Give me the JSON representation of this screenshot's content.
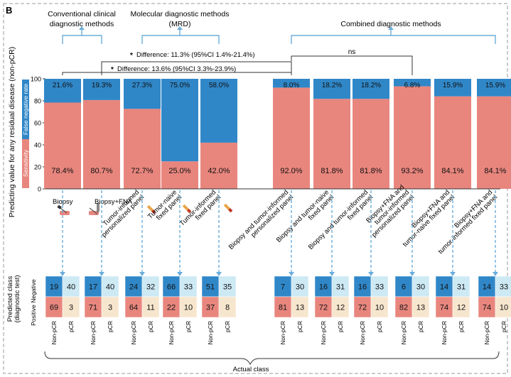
{
  "panel_label": "B",
  "groups": {
    "conventional": "Conventional clinical diagnostic methods",
    "conventional_lines": [
      "Conventional clinical",
      "diagnostic methods"
    ],
    "molecular_lines": [
      "Molecular diagnostic methods",
      "(MRD)"
    ],
    "combined": "Combined diagnostic methods"
  },
  "comparisons": [
    {
      "marker": "*",
      "text": "Difference: 11.3% (95%CI 1.4%-21.4%)"
    },
    {
      "marker": "*",
      "text": "Difference: 13.6% (95%CI 3.3%-23.9%)"
    },
    {
      "marker": "",
      "text": "ns"
    }
  ],
  "legend": {
    "false_negative": "False negative rate",
    "sensitivity": "Sensitivity"
  },
  "colors": {
    "sensitivity": "#E8867E",
    "false_negative": "#3087C8",
    "arrow": "#6BAEDB",
    "tn_cell": "#CDE9F4",
    "tp_cell": "#F7E6CE"
  },
  "icons": [
    {
      "name": "biopsy-needle-icon",
      "semantic": "biopsy-needle-icon"
    },
    {
      "name": "biopsy-fna-icon",
      "semantic": "biopsy-fna-icon"
    },
    {
      "name": "blood-tube-icon",
      "semantic": "blood-tube-icon"
    }
  ],
  "chart_data": {
    "type": "bar",
    "stacked": true,
    "ylabel": "Predicting value for any residual disease (non-pCR)",
    "ylim": [
      0,
      100
    ],
    "categories": [
      "Biopsy",
      "Biopsy+FNA",
      "Tumor-informed personalized panel",
      "Tumor-naive fixed panel",
      "Tumor-informed fixed panel",
      "Biopsy and tumor-informed personalized panel",
      "Biopsy and tumor-naive fixed panel",
      "Biopsy and tumor-informed fixed panel",
      "Biopsy+FNA and tumor-informed personalized panel",
      "Biopsy+FNA and tumor-naive fixed panel",
      "Biopsy+FNA and tumor-informed fixed panel"
    ],
    "category_lines": [
      [
        "Biopsy"
      ],
      [
        "Biopsy+FNA"
      ],
      [
        "Tumor-informed",
        "personalized panel"
      ],
      [
        "Tumor-naive",
        "fixed panel"
      ],
      [
        "Tumor-informed",
        "fixed panel"
      ],
      [
        "Biopsy and tumor-informed",
        "personalized panel"
      ],
      [
        "Biopsy and tumor-naive",
        "fixed panel"
      ],
      [
        "Biopsy and tumor-informed",
        "fixed panel"
      ],
      [
        "Biopsy+FNA and",
        "tumor-informed",
        "personalized panel"
      ],
      [
        "Biopsy+FNA and",
        "tumor-naive fixed panel"
      ],
      [
        "Biopsy+FNA and",
        "tumor-informed fixed panel"
      ]
    ],
    "series": [
      {
        "name": "Sensitivity",
        "values": [
          78.4,
          80.7,
          72.7,
          25.0,
          42.0,
          92.0,
          81.8,
          81.8,
          93.2,
          84.1,
          84.1
        ],
        "labels": [
          "78.4%",
          "80.7%",
          "72.7%",
          "25.0%",
          "42.0%",
          "92.0%",
          "81.8%",
          "81.8%",
          "93.2%",
          "84.1%",
          "84.1%"
        ]
      },
      {
        "name": "False negative rate",
        "values": [
          21.6,
          19.3,
          27.3,
          75.0,
          58.0,
          8.0,
          18.2,
          18.2,
          6.8,
          15.9,
          15.9
        ],
        "labels": [
          "21.6%",
          "19.3%",
          "27.3%",
          "75.0%",
          "58.0%",
          "8.0%",
          "18.2%",
          "18.2%",
          "6.8%",
          "15.9%",
          "15.9%"
        ]
      }
    ]
  },
  "confusion": {
    "ylabel_lines": [
      "Predicted class",
      "(diagnostic test)"
    ],
    "row_labels": [
      "Negative",
      "Positive"
    ],
    "col_labels": [
      "Non-pCR",
      "pCR"
    ],
    "xlabel": "Actual class",
    "matrices": [
      {
        "fn": "19",
        "tn": "40",
        "tp": "69",
        "fp": "3"
      },
      {
        "fn": "17",
        "tn": "40",
        "tp": "71",
        "fp": "3"
      },
      {
        "fn": "24",
        "tn": "32",
        "tp": "64",
        "fp": "11"
      },
      {
        "fn": "66",
        "tn": "33",
        "tp": "22",
        "fp": "10"
      },
      {
        "fn": "51",
        "tn": "35",
        "tp": "37",
        "fp": "8"
      },
      {
        "fn": "7",
        "tn": "30",
        "tp": "81",
        "fp": "13"
      },
      {
        "fn": "16",
        "tn": "31",
        "tp": "72",
        "fp": "12"
      },
      {
        "fn": "16",
        "tn": "33",
        "tp": "72",
        "fp": "10"
      },
      {
        "fn": "6",
        "tn": "30",
        "tp": "82",
        "fp": "13"
      },
      {
        "fn": "14",
        "tn": "31",
        "tp": "74",
        "fp": "12"
      },
      {
        "fn": "14",
        "tn": "33",
        "tp": "74",
        "fp": "10"
      }
    ]
  }
}
